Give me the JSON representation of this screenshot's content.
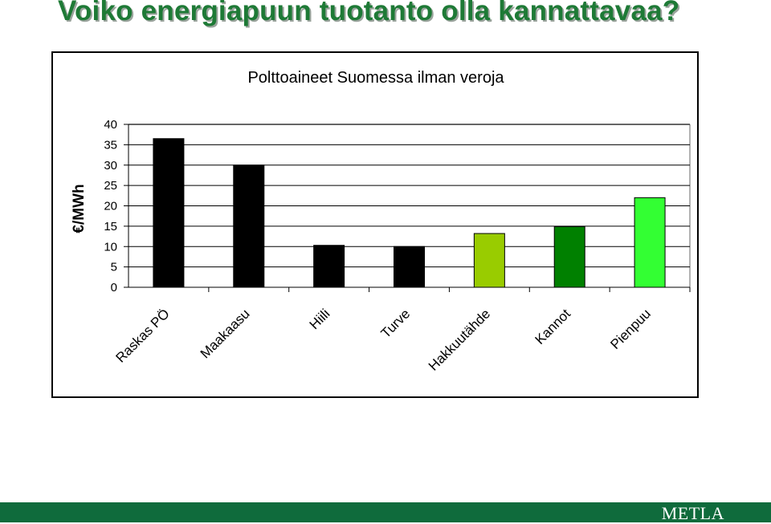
{
  "slide": {
    "title": "Voiko energiapuun tuotanto olla kannattavaa?",
    "footer_logo": "METLA",
    "footer_color": "#0f6b3c",
    "title_color": "#1e7a36"
  },
  "chart_data": {
    "type": "bar",
    "title": "Polttoaineet Suomessa ilman veroja",
    "ylabel": "€/MWh",
    "xlabel": "",
    "ylim": [
      0,
      40
    ],
    "yticks": [
      0,
      5,
      10,
      15,
      20,
      25,
      30,
      35,
      40
    ],
    "categories": [
      "Raskas PÖ",
      "Maakaasu",
      "Hiili",
      "Turve",
      "Hakkuutähde",
      "Kannot",
      "Pienpuu"
    ],
    "values": [
      36.5,
      30,
      10.3,
      10,
      13.2,
      14.9,
      22
    ],
    "colors": [
      "#000000",
      "#000000",
      "#000000",
      "#000000",
      "#99cc00",
      "#008000",
      "#33ff33"
    ],
    "grid": true
  }
}
